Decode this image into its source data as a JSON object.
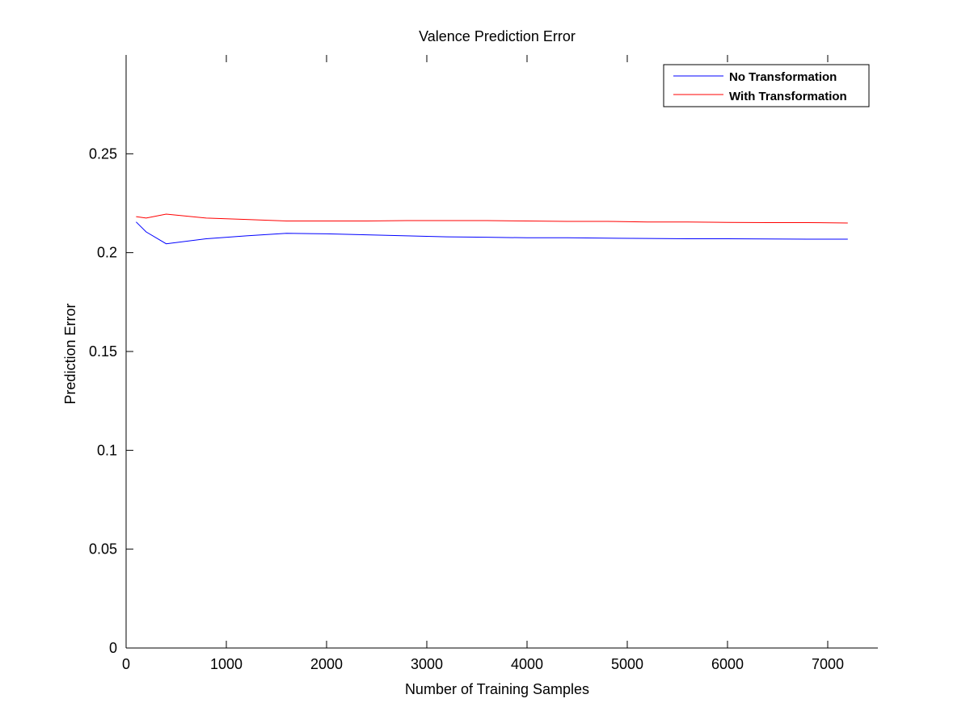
{
  "chart_data": {
    "type": "line",
    "title": "Valence Prediction Error",
    "xlabel": "Number of Training Samples",
    "ylabel": "Prediction Error",
    "xlim": [
      0,
      7500
    ],
    "ylim": [
      0,
      0.3
    ],
    "xticks": [
      0,
      1000,
      2000,
      3000,
      4000,
      5000,
      6000,
      7000
    ],
    "xtick_labels": [
      "0",
      "1000",
      "2000",
      "3000",
      "4000",
      "5000",
      "6000",
      "7000"
    ],
    "yticks": [
      0,
      0.05,
      0.1,
      0.15,
      0.2,
      0.25
    ],
    "ytick_labels": [
      "0",
      "0.05",
      "0.1",
      "0.15",
      "0.2",
      "0.25"
    ],
    "grid": false,
    "legend_position": "top-right",
    "x": [
      100,
      200,
      400,
      800,
      1200,
      1600,
      2000,
      2400,
      2800,
      3200,
      3600,
      4000,
      4400,
      4800,
      5200,
      5600,
      6000,
      6400,
      6800,
      7200
    ],
    "series": [
      {
        "name": "No Transformation",
        "color": "#0000ff",
        "values": [
          0.2155,
          0.2105,
          0.2045,
          0.207,
          0.2085,
          0.2098,
          0.2095,
          0.209,
          0.2085,
          0.208,
          0.2078,
          0.2075,
          0.2075,
          0.2073,
          0.2072,
          0.207,
          0.207,
          0.2069,
          0.2068,
          0.2068
        ]
      },
      {
        "name": "With Transformation",
        "color": "#ff0000",
        "values": [
          0.2182,
          0.2175,
          0.2195,
          0.2175,
          0.2168,
          0.216,
          0.216,
          0.216,
          0.2162,
          0.2162,
          0.2162,
          0.216,
          0.2158,
          0.2158,
          0.2155,
          0.2155,
          0.2153,
          0.2152,
          0.2152,
          0.215
        ]
      }
    ]
  }
}
